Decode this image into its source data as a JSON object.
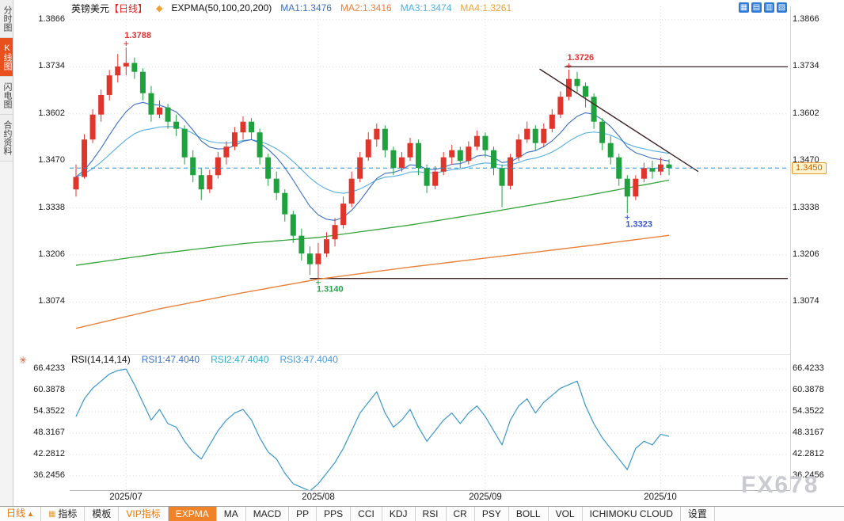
{
  "header": {
    "symbol": "英镑美元",
    "period_tag": "【日线】",
    "indicator": "EXPMA(50,100,20,200)",
    "ma_values": [
      {
        "label": "MA1:1.3476",
        "color": "#3a6fc4"
      },
      {
        "label": "MA2:1.3416",
        "color": "#e8813a"
      },
      {
        "label": "MA3:1.3474",
        "color": "#53aede"
      },
      {
        "label": "MA4:1.3261",
        "color": "#e8a23a"
      }
    ]
  },
  "icons": {
    "expma_diamond": "◆",
    "rsi_settings": "✳",
    "period_arrow": "▲",
    "indicator_tab": "▦",
    "layout": [
      "▦",
      "▤",
      "▥",
      "▧"
    ]
  },
  "sidebar": {
    "items": [
      {
        "label": "分时图"
      },
      {
        "label": "K线图"
      },
      {
        "label": "闪电图"
      },
      {
        "label": "合约资料"
      }
    ]
  },
  "main_axis": {
    "labels": [
      "1.3866",
      "1.3734",
      "1.3602",
      "1.3470",
      "1.3338",
      "1.3206",
      "1.3074"
    ]
  },
  "rsi_axis": {
    "labels": [
      "66.4233",
      "60.3878",
      "54.3522",
      "48.3167",
      "42.2812",
      "36.2456"
    ]
  },
  "rsi_header": {
    "title": "RSI(14,14,14)",
    "values": [
      {
        "label": "RSI1:47.4040",
        "color": "#3a6fc4"
      },
      {
        "label": "RSI2:47.4040",
        "color": "#2bb0c8"
      },
      {
        "label": "RSI3:47.4040",
        "color": "#4a9ad8"
      }
    ]
  },
  "annotations": {
    "current": "1.3450"
  },
  "x_labels": [
    "2025/07",
    "2025/08",
    "2025/09",
    "2025/10"
  ],
  "bottom_bar": {
    "period": "日线",
    "tabs": [
      {
        "label": "指标"
      },
      {
        "label": "模板"
      },
      {
        "label": "VIP指标"
      },
      {
        "label": "EXPMA"
      },
      {
        "label": "MA"
      },
      {
        "label": "MACD"
      },
      {
        "label": "PP"
      },
      {
        "label": "PPS"
      },
      {
        "label": "CCI"
      },
      {
        "label": "KDJ"
      },
      {
        "label": "RSI"
      },
      {
        "label": "CR"
      },
      {
        "label": "PSY"
      },
      {
        "label": "BOLL"
      },
      {
        "label": "VOL"
      },
      {
        "label": "ICHIMOKU CLOUD"
      },
      {
        "label": "设置"
      }
    ]
  },
  "watermark": "FX678",
  "colors": {
    "up": "#e0352b",
    "down": "#1fa23e",
    "ma_blue": "#3a6fc4",
    "ma_cyan": "#53aede",
    "ma_green": "#34a33a",
    "ma_orange": "#e8823a",
    "rsi_line": "#3a97c9",
    "dashed_line": "#2a8fc8",
    "dark_line": "#3d2323",
    "grid": "#dcdcdc"
  },
  "chart_data": {
    "type": "candlestick",
    "title": "英镑美元 日线 (GBP/USD Daily)",
    "x_labels": [
      "2025/07",
      "2025/08",
      "2025/09",
      "2025/10"
    ],
    "month_tick_indices": [
      6,
      29,
      49,
      70
    ],
    "price_axis": [
      1.3866,
      1.3734,
      1.3602,
      1.347,
      1.3338,
      1.3206,
      1.3074
    ],
    "candles": [
      [
        1.339,
        1.346,
        1.337,
        1.3425
      ],
      [
        1.3425,
        1.3545,
        1.342,
        1.353
      ],
      [
        1.353,
        1.3615,
        1.352,
        1.36
      ],
      [
        1.36,
        1.367,
        1.358,
        1.3655
      ],
      [
        1.3655,
        1.3725,
        1.364,
        1.371
      ],
      [
        1.371,
        1.377,
        1.369,
        1.3735
      ],
      [
        1.3735,
        1.3788,
        1.371,
        1.3745
      ],
      [
        1.3745,
        1.376,
        1.37,
        1.372
      ],
      [
        1.372,
        1.373,
        1.364,
        1.366
      ],
      [
        1.366,
        1.368,
        1.358,
        1.36
      ],
      [
        1.36,
        1.364,
        1.359,
        1.362
      ],
      [
        1.362,
        1.363,
        1.356,
        1.358
      ],
      [
        1.358,
        1.36,
        1.354,
        1.356
      ],
      [
        1.356,
        1.357,
        1.346,
        1.348
      ],
      [
        1.348,
        1.35,
        1.341,
        1.343
      ],
      [
        1.343,
        1.345,
        1.336,
        1.339
      ],
      [
        1.339,
        1.3445,
        1.338,
        1.343
      ],
      [
        1.343,
        1.3495,
        1.342,
        1.348
      ],
      [
        1.348,
        1.3525,
        1.346,
        1.351
      ],
      [
        1.351,
        1.3565,
        1.35,
        1.355
      ],
      [
        1.355,
        1.3595,
        1.353,
        1.358
      ],
      [
        1.358,
        1.359,
        1.353,
        1.355
      ],
      [
        1.355,
        1.356,
        1.346,
        1.348
      ],
      [
        1.348,
        1.349,
        1.34,
        1.342
      ],
      [
        1.342,
        1.344,
        1.336,
        1.338
      ],
      [
        1.338,
        1.339,
        1.33,
        1.332
      ],
      [
        1.332,
        1.333,
        1.324,
        1.326
      ],
      [
        1.326,
        1.328,
        1.319,
        1.321
      ],
      [
        1.321,
        1.323,
        1.315,
        1.318
      ],
      [
        1.318,
        1.324,
        1.314,
        1.321
      ],
      [
        1.321,
        1.327,
        1.32,
        1.325
      ],
      [
        1.325,
        1.331,
        1.323,
        1.329
      ],
      [
        1.329,
        1.337,
        1.328,
        1.335
      ],
      [
        1.335,
        1.344,
        1.334,
        1.342
      ],
      [
        1.342,
        1.3495,
        1.341,
        1.348
      ],
      [
        1.348,
        1.355,
        1.347,
        1.353
      ],
      [
        1.353,
        1.3575,
        1.351,
        1.356
      ],
      [
        1.356,
        1.357,
        1.348,
        1.35
      ],
      [
        1.35,
        1.351,
        1.343,
        1.345
      ],
      [
        1.345,
        1.3495,
        1.344,
        1.348
      ],
      [
        1.348,
        1.3535,
        1.347,
        1.352
      ],
      [
        1.352,
        1.353,
        1.343,
        1.345
      ],
      [
        1.345,
        1.346,
        1.338,
        1.34
      ],
      [
        1.34,
        1.3455,
        1.339,
        1.344
      ],
      [
        1.344,
        1.3495,
        1.343,
        1.348
      ],
      [
        1.348,
        1.3515,
        1.346,
        1.35
      ],
      [
        1.35,
        1.351,
        1.345,
        1.347
      ],
      [
        1.347,
        1.3525,
        1.346,
        1.351
      ],
      [
        1.351,
        1.3555,
        1.35,
        1.354
      ],
      [
        1.354,
        1.355,
        1.348,
        1.35
      ],
      [
        1.35,
        1.351,
        1.343,
        1.345
      ],
      [
        1.345,
        1.346,
        1.334,
        1.34
      ],
      [
        1.34,
        1.349,
        1.339,
        1.348
      ],
      [
        1.348,
        1.3545,
        1.347,
        1.353
      ],
      [
        1.353,
        1.358,
        1.352,
        1.356
      ],
      [
        1.356,
        1.357,
        1.35,
        1.352
      ],
      [
        1.352,
        1.3575,
        1.351,
        1.356
      ],
      [
        1.356,
        1.3615,
        1.355,
        1.36
      ],
      [
        1.36,
        1.3665,
        1.359,
        1.365
      ],
      [
        1.365,
        1.3726,
        1.364,
        1.37
      ],
      [
        1.37,
        1.372,
        1.366,
        1.368
      ],
      [
        1.368,
        1.369,
        1.362,
        1.365
      ],
      [
        1.365,
        1.366,
        1.356,
        1.358
      ],
      [
        1.358,
        1.359,
        1.35,
        1.352
      ],
      [
        1.352,
        1.354,
        1.346,
        1.348
      ],
      [
        1.348,
        1.349,
        1.34,
        1.342
      ],
      [
        1.342,
        1.343,
        1.3323,
        1.337
      ],
      [
        1.337,
        1.343,
        1.336,
        1.342
      ],
      [
        1.342,
        1.3465,
        1.341,
        1.345
      ],
      [
        1.345,
        1.347,
        1.342,
        1.344
      ],
      [
        1.344,
        1.348,
        1.343,
        1.346
      ],
      [
        1.346,
        1.3475,
        1.343,
        1.345
      ]
    ],
    "overlays": {
      "ema_periods": {
        "blue": 10,
        "cyan": 22
      },
      "ma_green_points": [
        [
          0,
          1.3177
        ],
        [
          10,
          1.321
        ],
        [
          20,
          1.3238
        ],
        [
          29,
          1.3255
        ],
        [
          40,
          1.329
        ],
        [
          50,
          1.3328
        ],
        [
          60,
          1.3368
        ],
        [
          66,
          1.3394
        ],
        [
          71,
          1.3416
        ]
      ],
      "ma_orange_points": [
        [
          0,
          1.3
        ],
        [
          10,
          1.3055
        ],
        [
          20,
          1.31
        ],
        [
          29,
          1.3138
        ],
        [
          40,
          1.3172
        ],
        [
          50,
          1.32
        ],
        [
          60,
          1.3228
        ],
        [
          71,
          1.3261
        ]
      ],
      "trendline": [
        [
          55.5,
          1.3728
        ],
        [
          74.5,
          1.344
        ]
      ],
      "hline_upper": {
        "price": 1.3734,
        "from_index": 58.5
      },
      "hline_lower": {
        "price": 1.314,
        "from_index": 28
      },
      "current_price_line": 1.345,
      "annotations": [
        {
          "index": 6,
          "price": 1.3788,
          "label": "1.3788",
          "color": "#e03030",
          "placement": "above"
        },
        {
          "index": 59,
          "price": 1.3726,
          "label": "1.3726",
          "color": "#e03030",
          "placement": "above"
        },
        {
          "index": 29,
          "price": 1.314,
          "label": "1.3140",
          "color": "#2aa34c",
          "placement": "below"
        },
        {
          "index": 66,
          "price": 1.3323,
          "label": "1.3323",
          "color": "#3b55c8",
          "placement": "below"
        }
      ]
    },
    "rsi": {
      "title": "RSI(14,14,14)",
      "axis": [
        66.4233,
        60.3878,
        54.3522,
        48.3167,
        42.2812,
        36.2456
      ],
      "values": [
        53,
        58,
        61,
        63,
        65,
        66,
        66.4,
        62,
        57,
        52,
        55,
        51,
        50,
        46,
        43,
        41,
        45,
        49,
        52,
        54,
        55,
        52,
        47,
        43,
        41,
        37,
        34,
        33,
        32,
        34,
        37,
        40,
        44,
        49,
        54,
        57,
        60,
        54,
        50,
        52,
        55,
        50,
        46,
        49,
        52,
        54,
        51,
        54,
        56,
        53,
        49,
        45,
        52,
        56,
        58,
        54,
        57,
        59,
        61,
        62,
        63,
        56,
        51,
        47,
        44,
        41,
        38,
        44,
        46,
        45,
        48,
        47.4
      ]
    }
  }
}
